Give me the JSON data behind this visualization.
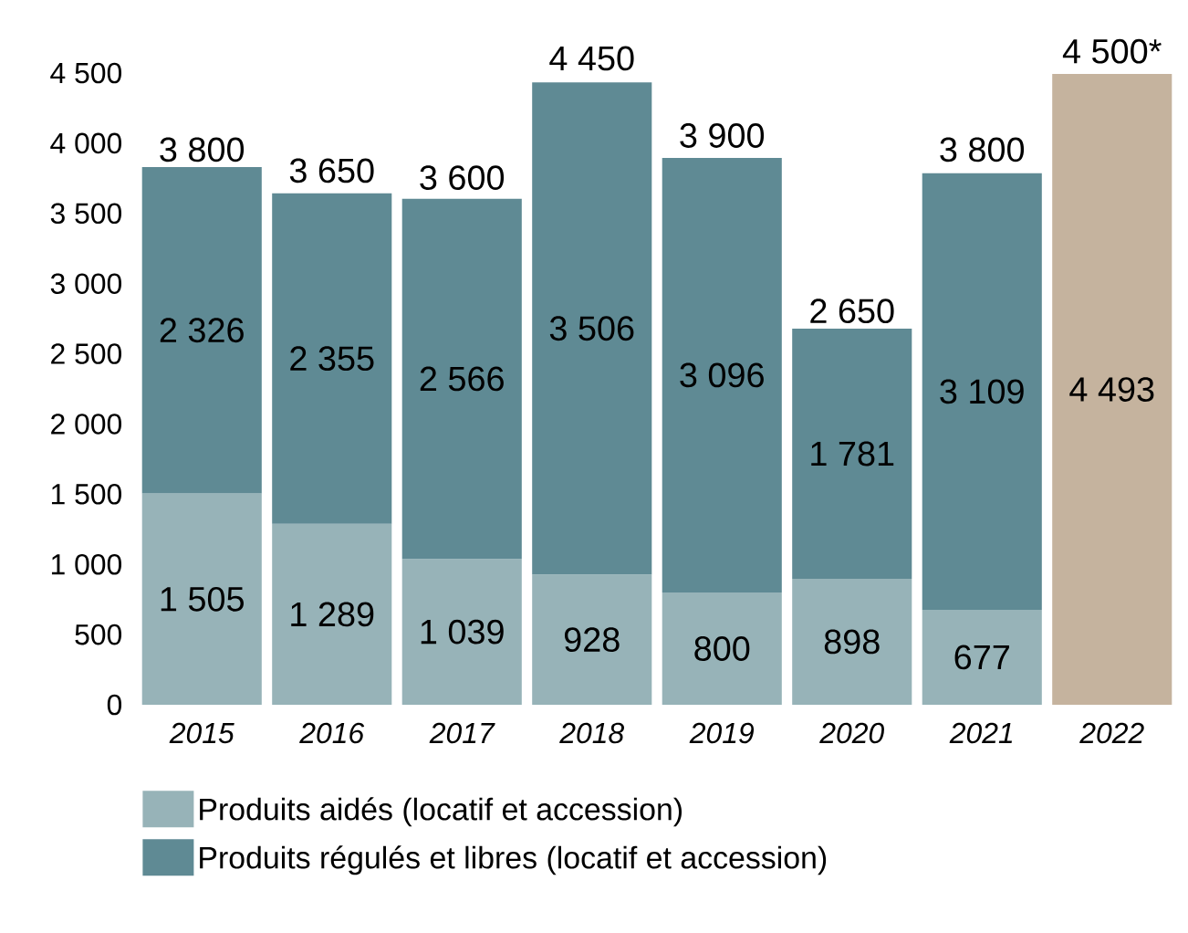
{
  "chart_data": {
    "type": "bar",
    "stacked": true,
    "categories": [
      "2015",
      "2016",
      "2017",
      "2018",
      "2019",
      "2020",
      "2021",
      "2022"
    ],
    "series": [
      {
        "name": "Produits aidés (locatif et accession)",
        "color": "#97b3b8",
        "values": [
          1505,
          1289,
          1039,
          928,
          800,
          898,
          677,
          null
        ],
        "value_labels": [
          "1 505",
          "1 289",
          "1 039",
          "928",
          "800",
          "898",
          "677",
          null
        ]
      },
      {
        "name": "Produits régulés et libres (locatif et accession)",
        "color": "#5f8a94",
        "values": [
          2326,
          2355,
          2566,
          3506,
          3096,
          1781,
          3109,
          null
        ],
        "value_labels": [
          "2 326",
          "2 355",
          "2 566",
          "3 506",
          "3 096",
          "1 781",
          "3 109",
          null
        ]
      },
      {
        "color": "#c5b39e",
        "values": [
          null,
          null,
          null,
          null,
          null,
          null,
          null,
          4493
        ],
        "value_labels": [
          null,
          null,
          null,
          null,
          null,
          null,
          null,
          "4 493"
        ]
      }
    ],
    "annotations": [
      {
        "text": "3 800",
        "x": "2015",
        "y": 3800
      },
      {
        "text": "3 650",
        "x": "2016",
        "y": 3650
      },
      {
        "text": "3 600",
        "x": "2017",
        "y": 3600
      },
      {
        "text": "4 450",
        "x": "2018",
        "y": 4450
      },
      {
        "text": "3 900",
        "x": "2019",
        "y": 3900
      },
      {
        "text": "2 650",
        "x": "2020",
        "y": 2650
      },
      {
        "text": "3 800",
        "x": "2021",
        "y": 3800
      },
      {
        "text": "4 500*",
        "x": "2022",
        "y": 4500
      }
    ],
    "ylim": [
      0,
      4500
    ],
    "yticks": [
      0,
      {
        "value": 500,
        "label": "500"
      },
      {
        "value": 1000,
        "label": "1 000"
      },
      {
        "value": 1500,
        "label": "1 500"
      },
      {
        "value": 2000,
        "label": "2 000"
      },
      {
        "value": 2500,
        "label": "2 500"
      },
      {
        "value": 3000,
        "label": "3 000"
      },
      {
        "value": 3500,
        "label": "3 500"
      },
      {
        "value": 4000,
        "label": "4 000"
      },
      {
        "value": 4500,
        "label": "4 500"
      }
    ],
    "legend": "bottom"
  }
}
